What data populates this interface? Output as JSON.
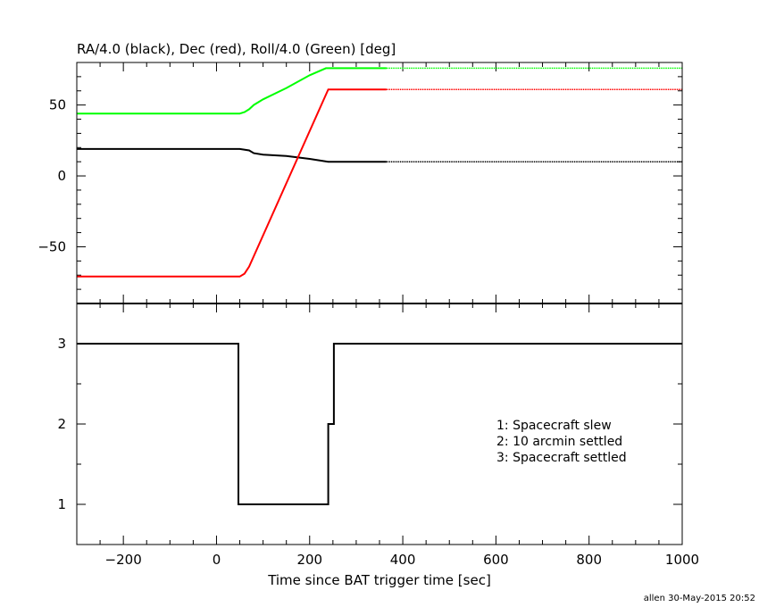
{
  "chart_data": [
    {
      "type": "line",
      "title": "RA/4.0 (black), Dec (red), Roll/4.0 (Green) [deg]",
      "xlim": [
        -300,
        1000
      ],
      "ylim": [
        -90,
        80
      ],
      "yticks": [
        -50,
        0,
        50
      ],
      "yticklabels": [
        "−50",
        "0",
        "50"
      ],
      "grid": false,
      "series": [
        {
          "color": "#000000",
          "x": [
            -300,
            50,
            70,
            80,
            100,
            150,
            200,
            240,
            365
          ],
          "y": [
            19,
            19,
            18,
            16,
            15,
            14,
            12,
            10,
            10
          ],
          "projected_x": [
            365,
            1000
          ],
          "projected_y": [
            10,
            10
          ]
        },
        {
          "color": "#ff0000",
          "x": [
            -300,
            50,
            60,
            70,
            240,
            365
          ],
          "y": [
            -71,
            -71,
            -69,
            -64,
            61,
            61
          ],
          "projected_x": [
            365,
            1000
          ],
          "projected_y": [
            61,
            61
          ]
        },
        {
          "color": "#00ff00",
          "x": [
            -300,
            50,
            60,
            70,
            80,
            100,
            150,
            200,
            235,
            365
          ],
          "y": [
            44,
            44,
            45,
            47,
            50,
            54,
            62,
            71,
            76,
            76
          ],
          "projected_x": [
            365,
            1000
          ],
          "projected_y": [
            76,
            76
          ]
        }
      ]
    },
    {
      "type": "line",
      "xlabel": "Time since BAT trigger time [sec]",
      "xlim": [
        -300,
        1000
      ],
      "ylim": [
        0.5,
        3.5
      ],
      "xticks": [
        -200,
        0,
        200,
        400,
        600,
        800,
        1000
      ],
      "xticklabels": [
        "−200",
        "0",
        "200",
        "400",
        "600",
        "800",
        "1000"
      ],
      "yticks": [
        1,
        2,
        3
      ],
      "yticklabels": [
        "1",
        "2",
        "3"
      ],
      "series": [
        {
          "color": "#000000",
          "step": true,
          "x": [
            -300,
            47,
            47,
            240,
            240,
            252,
            252,
            1000
          ],
          "y": [
            3,
            3,
            1,
            1,
            2,
            2,
            3,
            3
          ]
        }
      ],
      "legend_text": [
        "1: Spacecraft slew",
        "2: 10 arcmin settled",
        "3: Spacecraft settled"
      ]
    }
  ],
  "footer": "allen 30-May-2015 20:52"
}
